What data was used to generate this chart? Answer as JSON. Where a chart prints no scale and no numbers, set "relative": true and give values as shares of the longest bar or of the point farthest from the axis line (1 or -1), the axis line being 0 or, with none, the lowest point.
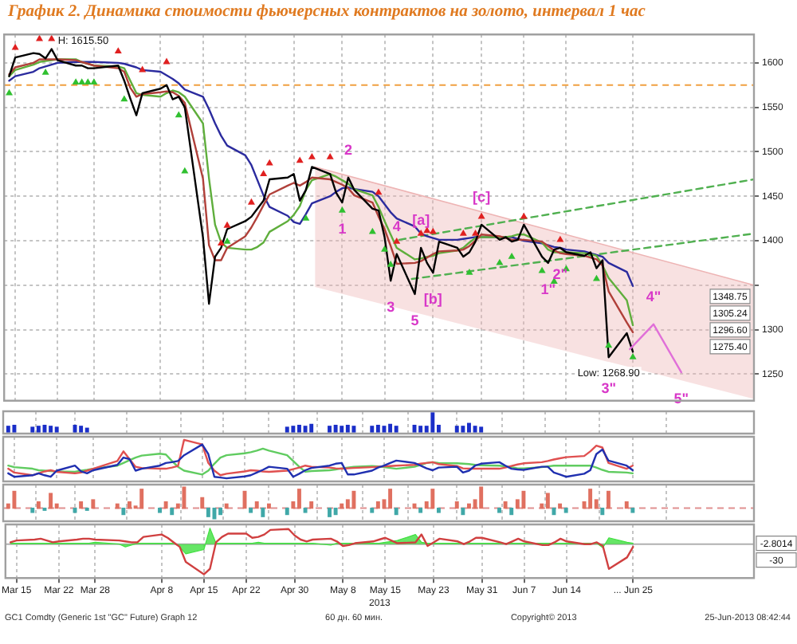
{
  "chart_data": [
    {
      "type": "line",
      "title": "График 2. Динамика стоимости фьючерсных контрактов на золото, интервал 1 час",
      "xlim": [
        "2013-03-13T04:00",
        "2013-07-15"
      ],
      "xticks": [
        {
          "value": "2013-03-15",
          "label": null
        },
        {
          "value": "2013-03-22",
          "label": null
        },
        {
          "value": "2013-03-28",
          "label": null
        },
        {
          "value": "2013-04-08",
          "label": null
        },
        {
          "value": "2013-04-15",
          "label": null
        },
        {
          "value": "2013-04-22",
          "label": null
        },
        {
          "value": "2013-04-30",
          "label": null
        },
        {
          "value": "2013-05-08",
          "label": null
        },
        {
          "value": "2013-05-15",
          "label": null
        },
        {
          "value": "2013-05-23",
          "label": null
        },
        {
          "value": "2013-05-31",
          "label": null
        },
        {
          "value": "2013-06-07",
          "label": null
        },
        {
          "value": "2013-06-14",
          "label": null
        },
        {
          "value": "2013-06-25",
          "label": null
        }
      ],
      "x": [
        "2013-03-14",
        "2013-03-15",
        "2013-03-18",
        "2013-03-19",
        "2013-03-20",
        "2013-03-21",
        "2013-03-22",
        "2013-03-25",
        "2013-03-26",
        "2013-03-27",
        "2013-03-28",
        "2013-04-01",
        "2013-04-02",
        "2013-04-03",
        "2013-04-04",
        "2013-04-05",
        "2013-04-08",
        "2013-04-09",
        "2013-04-10",
        "2013-04-11",
        "2013-04-12",
        "2013-04-15",
        "2013-04-16",
        "2013-04-17",
        "2013-04-18",
        "2013-04-19",
        "2013-04-22",
        "2013-04-23",
        "2013-04-24",
        "2013-04-25",
        "2013-04-26",
        "2013-04-29",
        "2013-04-30",
        "2013-05-01",
        "2013-05-02",
        "2013-05-03",
        "2013-05-06",
        "2013-05-07",
        "2013-05-08",
        "2013-05-09",
        "2013-05-10",
        "2013-05-13",
        "2013-05-14",
        "2013-05-15",
        "2013-05-16",
        "2013-05-17",
        "2013-05-20",
        "2013-05-21",
        "2013-05-22",
        "2013-05-23",
        "2013-05-24",
        "2013-05-27",
        "2013-05-28",
        "2013-05-29",
        "2013-05-30",
        "2013-05-31",
        "2013-06-03",
        "2013-06-04",
        "2013-06-05",
        "2013-06-06",
        "2013-06-07",
        "2013-06-10",
        "2013-06-11",
        "2013-06-12",
        "2013-06-13",
        "2013-06-14",
        "2013-06-17",
        "2013-06-18",
        "2013-06-19",
        "2013-06-20",
        "2013-06-21",
        "2013-06-24",
        "2013-06-25"
      ],
      "ylim": [
        1220,
        1632
      ],
      "yticks": [
        1250,
        1300,
        {
          "value": 1350,
          "label": null
        },
        1400,
        1450,
        1500,
        1550,
        1600
      ],
      "tick_labels": "y",
      "grid": true,
      "ref_lines": [
        {
          "axis": "y",
          "value": 1575,
          "color": "#f0a040",
          "line_style": "dashed"
        }
      ],
      "annotations": [
        {
          "text": "H: 1615.50",
          "x": "2013-03-21",
          "y": 1615.5
        },
        {
          "text": "1",
          "x": "2013-05-08",
          "y": 1443
        },
        {
          "text": "2",
          "x": "2013-05-09",
          "y": 1471
        },
        {
          "text": "3",
          "x": "2013-05-16",
          "y": 1355
        },
        {
          "text": "4",
          "x": "2013-05-17",
          "y": 1385
        },
        {
          "text": "5",
          "x": "2013-05-20",
          "y": 1340
        },
        {
          "text": "[a]",
          "x": "2013-05-21",
          "y": 1392
        },
        {
          "text": "[b]",
          "x": "2013-05-23",
          "y": 1364
        },
        {
          "text": "[c]",
          "x": "2013-05-31",
          "y": 1418
        },
        {
          "text": "1\"",
          "x": "2013-06-11",
          "y": 1375
        },
        {
          "text": "2\"",
          "x": "2013-06-13",
          "y": 1392
        },
        {
          "text": "Low: 1268.90",
          "x": "2013-06-21",
          "y": 1268.9
        },
        {
          "text": "3\"",
          "x": "2013-06-21",
          "y": 1268.9
        },
        {
          "text": "4\"",
          "x": "2013-06-28T10:00",
          "y": 1306
        },
        {
          "text": "5\"",
          "x": "2013-07-03",
          "y": 1252
        },
        "1348.75",
        "1305.24",
        "1296.60",
        "1275.40"
      ],
      "series": [
        {
          "color": "#eeb4b4",
          "x": [
            "2013-05-03T12:00",
            "2013-07-15"
          ],
          "values": [
            1483,
            1350
          ],
          "lower": [
            1348,
            1222
          ],
          "upper": [
            1483,
            1350
          ]
        },
        {
          "color": "#50b050",
          "line_style": "dashed",
          "x": [
            "2013-05-17T10:00",
            "2013-07-15"
          ],
          "values": [
            1401,
            1469
          ]
        },
        {
          "color": "#50b050",
          "line_style": "dashed",
          "x": [
            "2013-05-19T12:00",
            "2013-07-15"
          ],
          "values": [
            1357,
            1408
          ]
        },
        {
          "color": "#2b2b9e",
          "values": [
            1580,
            1585,
            1590,
            1594,
            1596,
            1598,
            1600,
            1601,
            1601,
            1601,
            1601,
            1600,
            1599,
            1597,
            1595,
            1592,
            1590,
            1586,
            1582,
            1577,
            1570,
            1562,
            1548,
            1532,
            1518,
            1507,
            1496,
            1485,
            1468,
            1451,
            1438,
            1428,
            1421,
            1419,
            1430,
            1442,
            1450,
            1455,
            1459,
            1460,
            1458,
            1455,
            1450,
            1441,
            1432,
            1425,
            1416,
            1408,
            1405,
            1403,
            1401,
            1401,
            1402,
            1403,
            1404,
            1404,
            1404,
            1404,
            1404,
            1402,
            1400,
            1397,
            1395,
            1393,
            1392,
            1390,
            1388,
            1386,
            1384,
            1382,
            1375,
            1365,
            1349
          ]
        },
        {
          "color": "#5fae3c",
          "values": [
            1585,
            1592,
            1598,
            1601,
            1602,
            1603,
            1604,
            1604,
            1601,
            1599,
            1597,
            1596,
            1594,
            1580,
            1566,
            1564,
            1562,
            1566,
            1569,
            1567,
            1562,
            1532,
            1470,
            1418,
            1398,
            1392,
            1390,
            1390,
            1393,
            1398,
            1410,
            1422,
            1429,
            1439,
            1457,
            1468,
            1475,
            1472,
            1468,
            1464,
            1458,
            1451,
            1438,
            1422,
            1407,
            1392,
            1379,
            1380,
            1382,
            1383,
            1386,
            1389,
            1392,
            1398,
            1403,
            1404,
            1404,
            1404,
            1405,
            1407,
            1407,
            1398,
            1390,
            1387,
            1387,
            1387,
            1386,
            1385,
            1383,
            1372,
            1358,
            1333,
            1305
          ]
        },
        {
          "color": "#b0403a",
          "values": [
            1587,
            1595,
            1600,
            1604,
            1604,
            1604,
            1604,
            1603,
            1601,
            1599,
            1597,
            1594,
            1590,
            1572,
            1562,
            1565,
            1567,
            1568,
            1567,
            1563,
            1555,
            1470,
            1395,
            1378,
            1378,
            1392,
            1405,
            1415,
            1427,
            1440,
            1452,
            1462,
            1465,
            1462,
            1466,
            1471,
            1469,
            1466,
            1463,
            1459,
            1451,
            1443,
            1427,
            1413,
            1394,
            1374,
            1375,
            1377,
            1381,
            1385,
            1388,
            1389,
            1390,
            1394,
            1400,
            1407,
            1405,
            1403,
            1401,
            1401,
            1401,
            1399,
            1394,
            1389,
            1386,
            1385,
            1383,
            1381,
            1379,
            1372,
            1343,
            1308,
            1297
          ]
        },
        {
          "color": "#000000",
          "values": [
            1585,
            1606,
            1611,
            1610,
            1605,
            1615.5,
            1603,
            1597,
            1597,
            1594,
            1594,
            1597,
            1580,
            1560,
            1541,
            1566,
            1571,
            1575,
            1559,
            1562,
            1550,
            1404,
            1329,
            1382,
            1392,
            1413,
            1422,
            1427,
            1436,
            1445,
            1469,
            1471,
            1475,
            1445,
            1457,
            1483,
            1475,
            1454,
            1443,
            1471,
            1457,
            1436,
            1434,
            1404,
            1355,
            1385,
            1340,
            1392,
            1375,
            1364,
            1399,
            1392,
            1382,
            1387,
            1399,
            1418,
            1401,
            1404,
            1399,
            1401,
            1418,
            1382,
            1375,
            1390,
            1392,
            1387,
            1383,
            1387,
            1369,
            1378,
            1268.9,
            1296,
            1275
          ]
        },
        {
          "type": "scatter",
          "color": "#e02020",
          "marker": "triangle",
          "x": [
            "2013-03-15",
            "2013-03-19",
            "2013-03-21",
            "2013-04-01",
            "2013-04-05",
            "2013-04-09",
            "2013-04-18",
            "2013-04-19",
            "2013-04-23",
            "2013-04-25",
            "2013-04-26",
            "2013-05-01",
            "2013-05-03",
            "2013-05-06",
            "2013-05-14",
            "2013-05-17",
            "2013-05-21",
            "2013-05-22",
            "2013-05-23",
            "2013-05-28",
            "2013-05-30",
            "2013-05-31",
            "2013-06-07",
            "2013-06-13"
          ],
          "values": [
            1617,
            1627,
            1627,
            1613,
            1592,
            1601,
            1397,
            1417,
            1443,
            1475,
            1487,
            1490,
            1494,
            1494,
            1454,
            1399,
            1408,
            1411,
            1410,
            1408,
            1408,
            1427,
            1427,
            1401
          ]
        },
        {
          "type": "scatter",
          "color": "#30c030",
          "marker": "triangle",
          "x": [
            "2013-03-14",
            "2013-03-20",
            "2013-03-25",
            "2013-03-26",
            "2013-03-27",
            "2013-03-28",
            "2013-04-02",
            "2013-04-11",
            "2013-04-12",
            "2013-04-19",
            "2013-05-02",
            "2013-05-08",
            "2013-05-13",
            "2013-05-15",
            "2013-05-16",
            "2013-05-29",
            "2013-06-03",
            "2013-06-05",
            "2013-06-10",
            "2013-06-12",
            "2013-06-14",
            "2013-06-19",
            "2013-06-21",
            "2013-06-25"
          ],
          "values": [
            1566,
            1589,
            1578,
            1578,
            1578,
            1578,
            1559,
            1541,
            1478,
            1399,
            1425,
            1434,
            1410,
            1390,
            1373,
            1364,
            1375,
            1382,
            1366,
            1354,
            1368,
            1357,
            1282,
            1269
          ]
        },
        {
          "color": "#e070d8",
          "x": [
            "2013-06-24T12:00",
            "2013-06-28T10:00",
            "2013-07-03"
          ],
          "values": [
            1278,
            1306,
            1252
          ]
        }
      ]
    },
    {
      "type": "bar",
      "relative": true,
      "tick_labels": false,
      "grid": "x",
      "xlim": [
        "2013-03-13T04:00",
        "2013-07-15"
      ],
      "xticks": [
        {
          "value": "2013-03-15",
          "label": null
        },
        {
          "value": "2013-03-22",
          "label": null
        },
        {
          "value": "2013-03-28",
          "label": null
        },
        {
          "value": "2013-04-08",
          "label": null
        },
        {
          "value": "2013-04-15",
          "label": null
        },
        {
          "value": "2013-04-22",
          "label": null
        },
        {
          "value": "2013-04-30",
          "label": null
        },
        {
          "value": "2013-05-08",
          "label": null
        },
        {
          "value": "2013-05-15",
          "label": null
        },
        {
          "value": "2013-05-23",
          "label": null
        },
        {
          "value": "2013-05-31",
          "label": null
        },
        {
          "value": "2013-06-07",
          "label": null
        },
        {
          "value": "2013-06-14",
          "label": null
        },
        {
          "value": "2013-06-25",
          "label": null
        }
      ],
      "series": [
        {
          "color": "#1a2ec8",
          "x": [
            "2013-03-14",
            "2013-03-15",
            "2013-03-18",
            "2013-03-19",
            "2013-03-20",
            "2013-03-21",
            "2013-03-22",
            "2013-03-25",
            "2013-03-26",
            "2013-03-27",
            "2013-04-29",
            "2013-04-30",
            "2013-05-01",
            "2013-05-02",
            "2013-05-03",
            "2013-05-06",
            "2013-05-07",
            "2013-05-08",
            "2013-05-09",
            "2013-05-10",
            "2013-05-13",
            "2013-05-14",
            "2013-05-15",
            "2013-05-16",
            "2013-05-17",
            "2013-05-20",
            "2013-05-21",
            "2013-05-22",
            "2013-05-23",
            "2013-05-24",
            "2013-05-27",
            "2013-05-28",
            "2013-05-29",
            "2013-05-30",
            "2013-05-31"
          ],
          "values": [
            0.3,
            0.35,
            0.25,
            0.3,
            0.35,
            0.3,
            0.25,
            0.35,
            0.3,
            0.2,
            0.25,
            0.3,
            0.35,
            0.3,
            0.4,
            0.3,
            0.35,
            0.3,
            0.35,
            0.3,
            0.3,
            0.35,
            0.3,
            0.4,
            0.3,
            0.35,
            0.3,
            0.3,
            1,
            0.35,
            0.3,
            0.3,
            0.45,
            0.3,
            0.25
          ]
        }
      ]
    },
    {
      "type": "line",
      "relative": true,
      "tick_labels": false,
      "grid": "x",
      "xlim": [
        "2013-03-13T04:00",
        "2013-07-15"
      ],
      "xticks": [
        {
          "value": "2013-03-15",
          "label": null
        },
        {
          "value": "2013-03-22",
          "label": null
        },
        {
          "value": "2013-03-28",
          "label": null
        },
        {
          "value": "2013-04-08",
          "label": null
        },
        {
          "value": "2013-04-15",
          "label": null
        },
        {
          "value": "2013-04-22",
          "label": null
        },
        {
          "value": "2013-04-30",
          "label": null
        },
        {
          "value": "2013-05-08",
          "label": null
        },
        {
          "value": "2013-05-15",
          "label": null
        },
        {
          "value": "2013-05-23",
          "label": null
        },
        {
          "value": "2013-05-31",
          "label": null
        },
        {
          "value": "2013-06-07",
          "label": null
        },
        {
          "value": "2013-06-14",
          "label": null
        },
        {
          "value": "2013-06-25",
          "label": null
        }
      ],
      "x": [
        "2013-03-14",
        "2013-03-15",
        "2013-03-18",
        "2013-03-19",
        "2013-03-20",
        "2013-03-21",
        "2013-03-22",
        "2013-03-25",
        "2013-03-26",
        "2013-03-27",
        "2013-03-28",
        "2013-04-01",
        "2013-04-02",
        "2013-04-03",
        "2013-04-04",
        "2013-04-05",
        "2013-04-08",
        "2013-04-09",
        "2013-04-10",
        "2013-04-11",
        "2013-04-12",
        "2013-04-15",
        "2013-04-16",
        "2013-04-17",
        "2013-04-18",
        "2013-04-19",
        "2013-04-22",
        "2013-04-23",
        "2013-04-24",
        "2013-04-25",
        "2013-04-26",
        "2013-04-29",
        "2013-04-30",
        "2013-05-01",
        "2013-05-02",
        "2013-05-03",
        "2013-05-06",
        "2013-05-07",
        "2013-05-08",
        "2013-05-09",
        "2013-05-10",
        "2013-05-13",
        "2013-05-14",
        "2013-05-15",
        "2013-05-16",
        "2013-05-17",
        "2013-05-20",
        "2013-05-21",
        "2013-05-22",
        "2013-05-23",
        "2013-05-24",
        "2013-05-27",
        "2013-05-28",
        "2013-05-29",
        "2013-05-30",
        "2013-05-31",
        "2013-06-03",
        "2013-06-04",
        "2013-06-05",
        "2013-06-06",
        "2013-06-07",
        "2013-06-10",
        "2013-06-11",
        "2013-06-12",
        "2013-06-13",
        "2013-06-14",
        "2013-06-17",
        "2013-06-18",
        "2013-06-19",
        "2013-06-20",
        "2013-06-21",
        "2013-06-24",
        "2013-06-25"
      ],
      "series": [
        {
          "color": "#60cc60",
          "values": [
            0.33,
            0.29,
            0.25,
            0.21,
            0.2,
            0.19,
            0.18,
            0.17,
            0.2,
            0.22,
            0.25,
            0.33,
            0.4,
            0.47,
            0.54,
            0.59,
            0.64,
            0.62,
            0.45,
            0.3,
            0.2,
            0.1,
            0.2,
            0.38,
            0.54,
            0.6,
            0.65,
            0.68,
            0.72,
            0.77,
            0.72,
            0.6,
            0.45,
            0.3,
            0.17,
            0.19,
            0.21,
            0.23,
            0.26,
            0.28,
            0.3,
            0.32,
            0.31,
            0.29,
            0.27,
            0.25,
            0.3,
            0.35,
            0.4,
            0.42,
            0.4,
            0.39,
            0.38,
            0.37,
            0.35,
            0.34,
            0.33,
            0.31,
            0.29,
            0.26,
            0.26,
            0.29,
            0.31,
            0.33,
            0.33,
            0.33,
            0.33,
            0.33,
            0.28,
            0.22,
            0.17,
            0.15,
            0.13
          ]
        },
        {
          "color": "#e05050",
          "values": [
            0.25,
            0.15,
            0.08,
            0.13,
            0.18,
            0.21,
            0.17,
            0.13,
            0.15,
            0.2,
            0.25,
            0.45,
            0.7,
            0.5,
            0.3,
            0.27,
            0.25,
            0.25,
            0.28,
            0.32,
            1,
            0.88,
            0.4,
            0.2,
            0.08,
            0.12,
            0.18,
            0.21,
            0.2,
            0.18,
            0.17,
            0.2,
            0.24,
            0.28,
            0.33,
            0.3,
            0.28,
            0.26,
            0.25,
            0.26,
            0.27,
            0.29,
            0.3,
            0.31,
            0.32,
            0.33,
            0.35,
            0.38,
            0.4,
            0.42,
            0.37,
            0.32,
            0.26,
            0.25,
            0.25,
            0.25,
            0.25,
            0.28,
            0.32,
            0.36,
            0.39,
            0.42,
            0.45,
            0.49,
            0.52,
            0.55,
            0.58,
            0.7,
            0.85,
            0.8,
            0.4,
            0.25,
            0.33
          ]
        },
        {
          "color": "#2030b0",
          "values": [
            0.13,
            0.04,
            0.08,
            0.13,
            0.08,
            0.04,
            0.2,
            0.33,
            0.18,
            0.13,
            0.21,
            0.35,
            0.54,
            0.5,
            0.2,
            0.25,
            0.33,
            0.4,
            0.42,
            0.45,
            0.6,
            0.88,
            0.63,
            0.04,
            0.02,
            0,
            0.05,
            0.08,
            0.15,
            0.22,
            0.3,
            0.25,
            0.04,
            0.12,
            0.21,
            0.27,
            0.33,
            0.38,
            0.4,
            0.1,
            0.1,
            0.2,
            0.28,
            0.33,
            0.4,
            0.46,
            0.4,
            0.33,
            0.26,
            0.21,
            0.28,
            0.3,
            0.15,
            0.2,
            0.33,
            0.38,
            0.42,
            0.33,
            0.25,
            0.23,
            0.22,
            0.3,
            0.3,
            0.15,
            0.1,
            0.04,
            0.12,
            0.21,
            0.63,
            0.75,
            0.46,
            0.33,
            0.21
          ]
        }
      ]
    },
    {
      "type": "bar",
      "relative": true,
      "tick_labels": false,
      "grid": "x",
      "xlim": [
        "2013-03-13T04:00",
        "2013-07-15"
      ],
      "xticks": [
        {
          "value": "2013-03-15",
          "label": null
        },
        {
          "value": "2013-03-22",
          "label": null
        },
        {
          "value": "2013-03-28",
          "label": null
        },
        {
          "value": "2013-04-08",
          "label": null
        },
        {
          "value": "2013-04-15",
          "label": null
        },
        {
          "value": "2013-04-22",
          "label": null
        },
        {
          "value": "2013-04-30",
          "label": null
        },
        {
          "value": "2013-05-08",
          "label": null
        },
        {
          "value": "2013-05-15",
          "label": null
        },
        {
          "value": "2013-05-23",
          "label": null
        },
        {
          "value": "2013-05-31",
          "label": null
        },
        {
          "value": "2013-06-07",
          "label": null
        },
        {
          "value": "2013-06-14",
          "label": null
        },
        {
          "value": "2013-06-25",
          "label": null
        }
      ],
      "ref_lines": [
        {
          "axis": "y",
          "value": 0,
          "color": "#e09090",
          "line_style": "dashed"
        }
      ],
      "series": [
        {
          "color": "#e07060",
          "x": [
            "2013-03-14",
            "2013-03-15",
            "2013-03-19",
            "2013-03-21",
            "2013-03-22",
            "2013-03-26",
            "2013-03-28",
            "2013-04-01",
            "2013-04-03",
            "2013-04-04",
            "2013-04-05",
            "2013-04-09",
            "2013-04-11",
            "2013-04-12",
            "2013-04-15",
            "2013-04-19",
            "2013-04-22",
            "2013-04-24",
            "2013-04-26",
            "2013-04-30",
            "2013-05-01",
            "2013-05-03",
            "2013-05-08",
            "2013-05-09",
            "2013-05-10",
            "2013-05-14",
            "2013-05-15",
            "2013-05-16",
            "2013-05-20",
            "2013-05-22",
            "2013-05-23",
            "2013-05-27",
            "2013-05-29",
            "2013-05-30",
            "2013-05-31",
            "2013-06-04",
            "2013-06-06",
            "2013-06-07",
            "2013-06-10",
            "2013-06-11",
            "2013-06-13",
            "2013-06-17",
            "2013-06-18",
            "2013-06-19",
            "2013-06-21",
            "2013-06-24"
          ],
          "values": [
            0.2,
            0.8,
            0.3,
            0.7,
            0.2,
            0.3,
            0.4,
            0.2,
            0.3,
            0.1,
            0.9,
            0.3,
            0.2,
            1,
            0.5,
            0.2,
            0.8,
            0.3,
            0.2,
            0.3,
            0.9,
            0.3,
            0.2,
            0.4,
            0.8,
            0.3,
            0.4,
            0.9,
            0.2,
            0.3,
            0.9,
            0.3,
            0.2,
            0.4,
            1,
            0.3,
            0.4,
            0.8,
            0.2,
            0.7,
            0.2,
            0.3,
            0.9,
            0.4,
            0.8,
            0.3
          ]
        },
        {
          "color": "#40a8a8",
          "x": [
            "2013-03-18",
            "2013-03-20",
            "2013-03-25",
            "2013-03-27",
            "2013-04-02",
            "2013-04-08",
            "2013-04-10",
            "2013-04-16",
            "2013-04-17",
            "2013-04-18",
            "2013-04-23",
            "2013-04-25",
            "2013-04-29",
            "2013-05-02",
            "2013-05-06",
            "2013-05-07",
            "2013-05-13",
            "2013-05-17",
            "2013-05-21",
            "2013-05-24",
            "2013-05-28",
            "2013-06-03",
            "2013-06-05",
            "2013-06-12",
            "2013-06-14",
            "2013-06-20",
            "2013-06-25"
          ],
          "values": [
            -0.2,
            -0.1,
            -0.2,
            -0.1,
            -0.3,
            -0.2,
            -0.3,
            -0.4,
            -0.5,
            -0.3,
            -0.2,
            -0.4,
            -0.3,
            -0.2,
            -0.4,
            -0.3,
            -0.2,
            -0.3,
            -0.2,
            -0.2,
            -0.3,
            -0.2,
            -0.3,
            -0.3,
            -0.2,
            -0.3,
            -0.2
          ]
        }
      ]
    },
    {
      "type": "line",
      "relative": true,
      "grid": "x",
      "xlabel": "2013",
      "xlim": [
        "2013-03-13T04:00",
        "2013-07-15"
      ],
      "xticks": [
        {
          "value": "2013-03-15",
          "label": "Mar 15"
        },
        {
          "value": "2013-03-22",
          "label": "Mar 22"
        },
        {
          "value": "2013-03-28",
          "label": "Mar 28"
        },
        {
          "value": "2013-04-08",
          "label": "Apr 8"
        },
        {
          "value": "2013-04-15",
          "label": "Apr 15"
        },
        {
          "value": "2013-04-22",
          "label": "Apr 22"
        },
        {
          "value": "2013-04-30",
          "label": "Apr 30"
        },
        {
          "value": "2013-05-08",
          "label": "May 8"
        },
        {
          "value": "2013-05-15",
          "label": "May 15"
        },
        {
          "value": "2013-05-23",
          "label": "May 23"
        },
        {
          "value": "2013-05-31",
          "label": "May 31"
        },
        {
          "value": "2013-06-07",
          "label": "Jun 7"
        },
        {
          "value": "2013-06-14",
          "label": "Jun 14"
        },
        {
          "value": "2013-06-25",
          "label": "... Jun 25"
        }
      ],
      "x": [
        "2013-03-14",
        "2013-03-15",
        "2013-03-18",
        "2013-03-19",
        "2013-03-20",
        "2013-03-21",
        "2013-03-22",
        "2013-03-25",
        "2013-03-26",
        "2013-03-27",
        "2013-03-28",
        "2013-04-01",
        "2013-04-02",
        "2013-04-03",
        "2013-04-04",
        "2013-04-05",
        "2013-04-08",
        "2013-04-09",
        "2013-04-10",
        "2013-04-11",
        "2013-04-12",
        "2013-04-15",
        "2013-04-16",
        "2013-04-17",
        "2013-04-18",
        "2013-04-19",
        "2013-04-22",
        "2013-04-23",
        "2013-04-24",
        "2013-04-25",
        "2013-04-26",
        "2013-04-29",
        "2013-04-30",
        "2013-05-01",
        "2013-05-02",
        "2013-05-03",
        "2013-05-06",
        "2013-05-07",
        "2013-05-08",
        "2013-05-09",
        "2013-05-10",
        "2013-05-13",
        "2013-05-14",
        "2013-05-15",
        "2013-05-16",
        "2013-05-17",
        "2013-05-20",
        "2013-05-21",
        "2013-05-22",
        "2013-05-23",
        "2013-05-24",
        "2013-05-27",
        "2013-05-28",
        "2013-05-29",
        "2013-05-30",
        "2013-05-31",
        "2013-06-03",
        "2013-06-04",
        "2013-06-05",
        "2013-06-06",
        "2013-06-07",
        "2013-06-10",
        "2013-06-11",
        "2013-06-12",
        "2013-06-13",
        "2013-06-14",
        "2013-06-17",
        "2013-06-18",
        "2013-06-19",
        "2013-06-20",
        "2013-06-21",
        "2013-06-24",
        "2013-06-25"
      ],
      "ref_lines": [
        {
          "axis": "y",
          "value": 0,
          "color": "#b0b0b0"
        }
      ],
      "annotations": [
        "-2.8014",
        "-30",
        "GC1 Comdty (Generic 1st \"GC\" Future) Graph 12",
        "60 дн. 60 мин.",
        "Copyright© 2013",
        "25-Jun-2013 08:42:44"
      ],
      "series": [
        {
          "type": "area",
          "color": "#40e040",
          "values": [
            0.03,
            0.03,
            0.03,
            0.03,
            0.03,
            0.03,
            0.03,
            0.03,
            0.03,
            0.03,
            0.06,
            0,
            -0.09,
            -0.03,
            0.03,
            0.03,
            0.03,
            0.03,
            0.03,
            -0.09,
            -0.32,
            -0.18,
            0.53,
            0.03,
            0.03,
            0.03,
            0.03,
            0.03,
            0.06,
            0.03,
            0.03,
            0.03,
            0.03,
            0.03,
            0.03,
            0.03,
            -0.03,
            0.03,
            0.03,
            0.03,
            0.03,
            0.03,
            0.03,
            0.06,
            0.09,
            0.12,
            0.32,
            0.06,
            0.03,
            0.03,
            0.03,
            0.03,
            0.03,
            0.03,
            0.03,
            0.03,
            0.03,
            0.03,
            0.03,
            0.03,
            0.03,
            0.03,
            0.03,
            0.03,
            0.03,
            0.03,
            0.03,
            0.03,
            0.03,
            -0.12,
            0.21,
            0.06,
            0.03
          ]
        },
        {
          "color": "#d04040",
          "values": [
            0.06,
            0.12,
            0.15,
            0.18,
            0.12,
            0.06,
            0.09,
            0.15,
            0.18,
            0.18,
            0.15,
            0.12,
            0.09,
            0.06,
            0.06,
            0.24,
            0.32,
            0.21,
            0.06,
            -0.09,
            -0.59,
            -1,
            -0.82,
            0.06,
            0.24,
            0.35,
            0.35,
            0.21,
            0.24,
            0.32,
            0.47,
            0.5,
            0.29,
            0.15,
            0.09,
            0.15,
            0.18,
            0.09,
            -0.06,
            -0.03,
            0.03,
            0.09,
            0.15,
            0.21,
            0.12,
            0.03,
            0.06,
            0.32,
            -0.06,
            0.06,
            0.18,
            0.09,
            0,
            0.09,
            0.21,
            0.21,
            0.06,
            0,
            0.09,
            0.18,
            0.09,
            -0.03,
            -0.03,
            0.06,
            0.18,
            0.09,
            0,
            0,
            0.06,
            -0.06,
            -0.82,
            -0.44,
            -0.09
          ]
        }
      ]
    }
  ]
}
